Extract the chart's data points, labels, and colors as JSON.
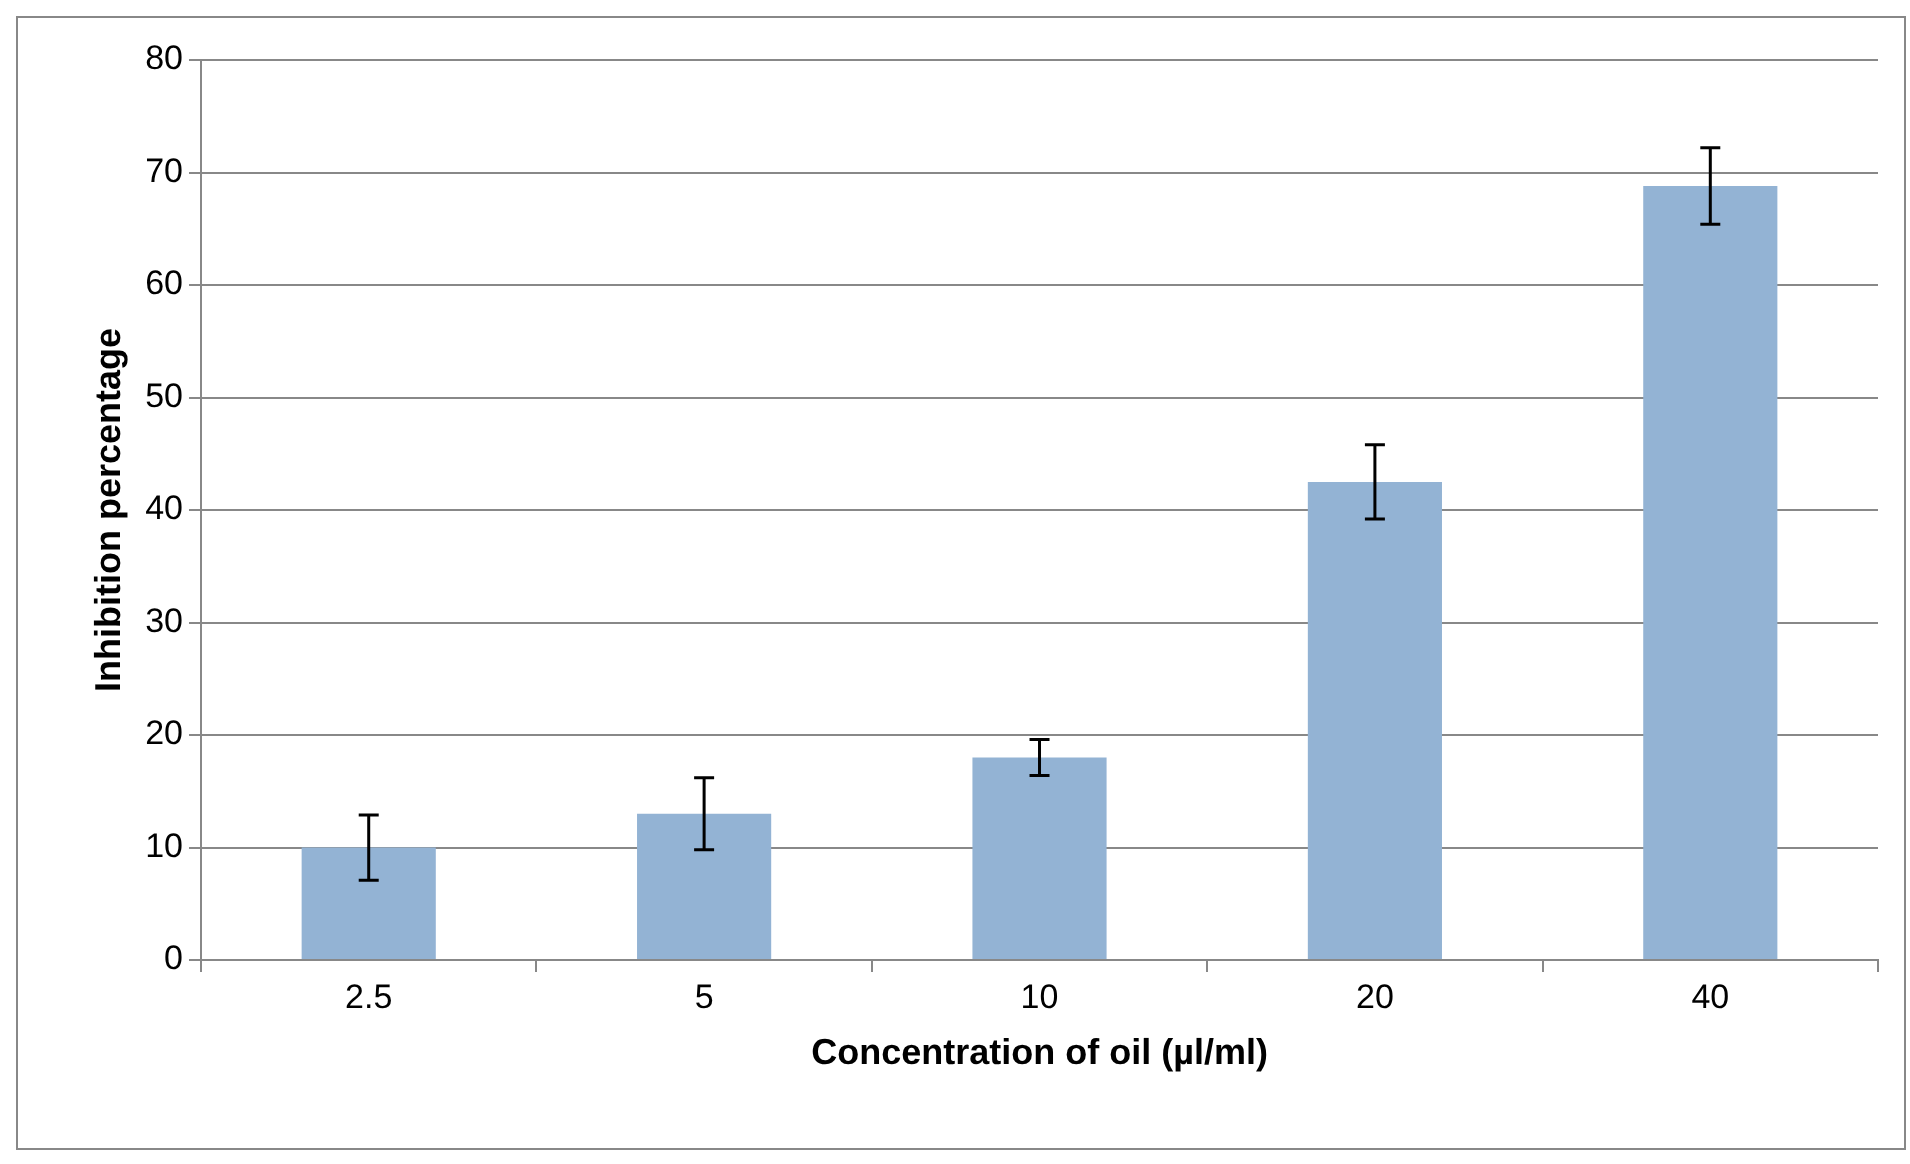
{
  "chart_data": {
    "type": "bar",
    "xlabel": "Concentration of oil (µl/ml)",
    "ylabel": "Inhibition percentage",
    "categories": [
      "2.5",
      "5",
      "10",
      "20",
      "40"
    ],
    "values": [
      10,
      13,
      18,
      42.5,
      68.8
    ],
    "errors": [
      2.9,
      3.2,
      1.6,
      3.3,
      3.4
    ],
    "color": "#93b3d4",
    "ylim": [
      0,
      80
    ],
    "yticks": [
      0,
      10,
      20,
      30,
      40,
      50,
      60,
      70,
      80
    ],
    "grid": "y",
    "legend": false
  }
}
